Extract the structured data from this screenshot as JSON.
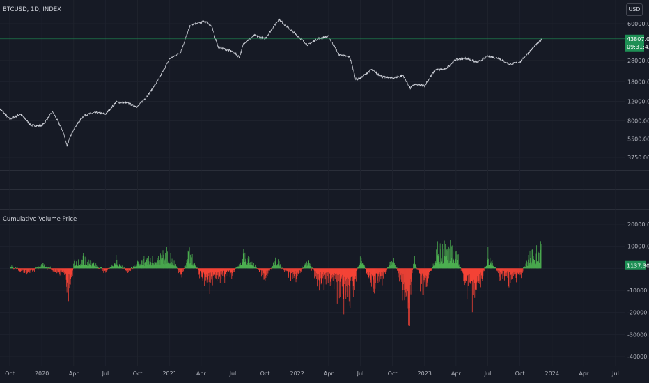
{
  "header": {
    "symbol_title": "BTCUSD, 1D, INDEX",
    "currency_button": "USD"
  },
  "indicator": {
    "title": "Cumulative Volume Price"
  },
  "colors": {
    "background": "#161a25",
    "price_line": "#d1d4dc",
    "positive": "#4caf50",
    "negative": "#f44336",
    "badge": "#1e8f55",
    "price_ref_line": "#1e8f55"
  },
  "price_badge": {
    "price": "43807.02",
    "countdown": "09:31:43"
  },
  "indicator_badge": {
    "value": "1137.30"
  },
  "chart_data": [
    {
      "type": "line",
      "title": "BTCUSD, 1D, INDEX",
      "scale": "log",
      "y_ticks": [
        60000,
        28000,
        18000,
        12000,
        8000,
        5500,
        3750
      ],
      "y_tick_labels": [
        "60000.00",
        "28000.00",
        "18000.00",
        "12000.00",
        "8000.00",
        "5500.00",
        "3750.00"
      ],
      "last_price": 43807.02,
      "x_labels": [
        "Oct",
        "2020",
        "Apr",
        "Jul",
        "Oct",
        "2021",
        "Apr",
        "Jul",
        "Oct",
        "2022",
        "Apr",
        "Jul",
        "Oct",
        "2023",
        "Apr",
        "Jul",
        "Oct",
        "2024",
        "Apr",
        "Jul"
      ],
      "x_label_dates": [
        "2019-10-01",
        "2020-01-01",
        "2020-04-01",
        "2020-07-01",
        "2020-10-01",
        "2021-01-01",
        "2021-04-01",
        "2021-07-01",
        "2021-10-01",
        "2022-01-01",
        "2022-04-01",
        "2022-07-01",
        "2022-10-01",
        "2023-01-01",
        "2023-04-01",
        "2023-07-01",
        "2023-10-01",
        "2024-01-01",
        "2024-04-01",
        "2024-07-01"
      ],
      "series": [
        {
          "dates": [
            "2019-09-01",
            "2019-10-01",
            "2019-11-01",
            "2019-12-01",
            "2020-01-01",
            "2020-02-01",
            "2020-03-01",
            "2020-03-13",
            "2020-04-01",
            "2020-05-01",
            "2020-06-01",
            "2020-07-01",
            "2020-08-01",
            "2020-09-01",
            "2020-10-01",
            "2020-11-01",
            "2020-12-01",
            "2021-01-01",
            "2021-02-01",
            "2021-03-01",
            "2021-04-14",
            "2021-05-01",
            "2021-05-20",
            "2021-06-01",
            "2021-07-01",
            "2021-07-20",
            "2021-08-01",
            "2021-09-01",
            "2021-10-01",
            "2021-11-10",
            "2021-12-01",
            "2022-01-01",
            "2022-02-01",
            "2022-03-01",
            "2022-04-01",
            "2022-05-01",
            "2022-06-01",
            "2022-06-18",
            "2022-07-01",
            "2022-08-01",
            "2022-09-01",
            "2022-10-01",
            "2022-11-01",
            "2022-11-21",
            "2022-12-01",
            "2023-01-01",
            "2023-02-01",
            "2023-03-01",
            "2023-04-01",
            "2023-05-01",
            "2023-06-01",
            "2023-07-01",
            "2023-08-01",
            "2023-09-01",
            "2023-10-01",
            "2023-11-01",
            "2023-12-04"
          ],
          "values": [
            10400,
            8300,
            9200,
            7300,
            7200,
            9700,
            6500,
            4800,
            6800,
            9000,
            9500,
            9200,
            11800,
            11600,
            10700,
            13800,
            19000,
            29000,
            33000,
            58000,
            63000,
            57000,
            37000,
            36000,
            33500,
            30000,
            40000,
            47000,
            43800,
            66000,
            57000,
            47000,
            38500,
            44000,
            46000,
            31500,
            30000,
            19000,
            19300,
            23200,
            20000,
            19400,
            20500,
            15700,
            17000,
            16600,
            23100,
            23300,
            28500,
            29200,
            26800,
            30500,
            29300,
            25900,
            27000,
            34500,
            43807.02
          ]
        }
      ]
    },
    {
      "type": "bar",
      "title": "Cumulative Volume Price",
      "ylim": [
        -40000,
        20000
      ],
      "y_ticks": [
        20000,
        10000,
        0,
        -10000,
        -20000,
        -30000,
        -40000
      ],
      "y_tick_labels": [
        "20000.00",
        "10000.00",
        "0.00",
        "-10000.00",
        "-20000.00",
        "-30000.00",
        "-40000.00"
      ],
      "last_value": 1137.3,
      "series": [
        {
          "name": "Cumulative Volume Price",
          "dates": [
            "2019-10-01",
            "2019-11-01",
            "2019-12-01",
            "2020-01-01",
            "2020-02-01",
            "2020-03-01",
            "2020-03-20",
            "2020-04-01",
            "2020-05-01",
            "2020-06-01",
            "2020-07-01",
            "2020-08-01",
            "2020-09-01",
            "2020-10-01",
            "2020-11-01",
            "2020-12-01",
            "2021-01-01",
            "2021-02-01",
            "2021-03-01",
            "2021-04-01",
            "2021-05-01",
            "2021-06-01",
            "2021-07-01",
            "2021-08-01",
            "2021-09-01",
            "2021-10-01",
            "2021-11-01",
            "2021-12-01",
            "2022-01-01",
            "2022-02-01",
            "2022-03-01",
            "2022-04-01",
            "2022-05-01",
            "2022-06-01",
            "2022-07-01",
            "2022-08-01",
            "2022-09-01",
            "2022-10-01",
            "2022-11-01",
            "2022-11-15",
            "2022-12-01",
            "2023-01-01",
            "2023-02-01",
            "2023-03-01",
            "2023-04-01",
            "2023-05-01",
            "2023-06-01",
            "2023-07-01",
            "2023-08-01",
            "2023-09-01",
            "2023-10-01",
            "2023-11-01",
            "2023-12-01"
          ],
          "values": [
            1500,
            -1500,
            -2500,
            2500,
            -1500,
            -3500,
            -16000,
            3500,
            6500,
            2000,
            -2500,
            4500,
            -2500,
            3000,
            5500,
            7500,
            10000,
            -5000,
            9500,
            -7000,
            -9500,
            -5000,
            -3000,
            7500,
            1500,
            -6000,
            6000,
            -4000,
            -5500,
            5500,
            -8000,
            -7000,
            -14000,
            -22000,
            9000,
            -12000,
            -9000,
            8500,
            -15000,
            -30000,
            7000,
            -19000,
            9000,
            12000,
            8500,
            -12000,
            -16000,
            7000,
            -3500,
            -6500,
            -5000,
            9500,
            10500
          ]
        }
      ]
    }
  ]
}
